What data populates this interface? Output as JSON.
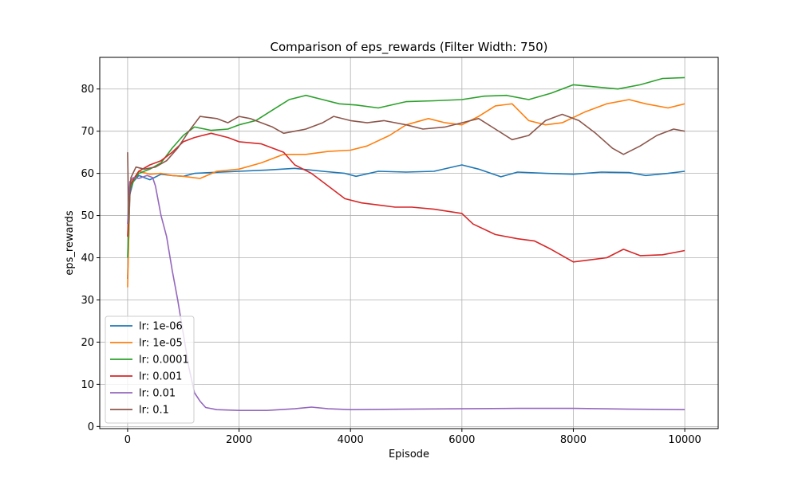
{
  "chart_data": {
    "type": "line",
    "title": "Comparison of eps_rewards (Filter Width: 750)",
    "xlabel": "Episode",
    "ylabel": "eps_rewards",
    "xlim": [
      -500,
      10600
    ],
    "ylim": [
      -0.5,
      87.5
    ],
    "xticks": [
      0,
      2000,
      4000,
      6000,
      8000,
      10000
    ],
    "yticks": [
      0,
      10,
      20,
      30,
      40,
      50,
      60,
      70,
      80
    ],
    "grid": true,
    "legend_position": "lower-left",
    "series": [
      {
        "name": "lr: 1e-06",
        "color": "#1f77b4",
        "points": [
          [
            0,
            35
          ],
          [
            40,
            55
          ],
          [
            100,
            58
          ],
          [
            200,
            59.5
          ],
          [
            400,
            58.5
          ],
          [
            600,
            59.8
          ],
          [
            800,
            59.5
          ],
          [
            1000,
            59.3
          ],
          [
            1200,
            60
          ],
          [
            1500,
            60.2
          ],
          [
            2000,
            60.5
          ],
          [
            2500,
            60.8
          ],
          [
            3000,
            61.2
          ],
          [
            3500,
            60.5
          ],
          [
            3900,
            60
          ],
          [
            4100,
            59.3
          ],
          [
            4500,
            60.5
          ],
          [
            5000,
            60.3
          ],
          [
            5500,
            60.5
          ],
          [
            6000,
            62
          ],
          [
            6300,
            61
          ],
          [
            6700,
            59.2
          ],
          [
            7000,
            60.3
          ],
          [
            7500,
            60
          ],
          [
            8000,
            59.8
          ],
          [
            8500,
            60.3
          ],
          [
            9000,
            60.2
          ],
          [
            9300,
            59.5
          ],
          [
            9700,
            60
          ],
          [
            10000,
            60.5
          ]
        ]
      },
      {
        "name": "lr: 1e-05",
        "color": "#ff7f0e",
        "points": [
          [
            0,
            33
          ],
          [
            40,
            56
          ],
          [
            100,
            58.5
          ],
          [
            200,
            60.5
          ],
          [
            400,
            59.8
          ],
          [
            600,
            60
          ],
          [
            800,
            59.5
          ],
          [
            1000,
            59.3
          ],
          [
            1300,
            58.8
          ],
          [
            1600,
            60.5
          ],
          [
            2000,
            61
          ],
          [
            2400,
            62.5
          ],
          [
            2800,
            64.5
          ],
          [
            3200,
            64.5
          ],
          [
            3600,
            65.2
          ],
          [
            4000,
            65.5
          ],
          [
            4300,
            66.5
          ],
          [
            4700,
            69
          ],
          [
            5000,
            71.5
          ],
          [
            5400,
            73
          ],
          [
            5700,
            72
          ],
          [
            6000,
            71.5
          ],
          [
            6300,
            73.5
          ],
          [
            6600,
            76
          ],
          [
            6900,
            76.5
          ],
          [
            7200,
            72.5
          ],
          [
            7500,
            71.5
          ],
          [
            7800,
            72
          ],
          [
            8200,
            74.5
          ],
          [
            8600,
            76.5
          ],
          [
            9000,
            77.5
          ],
          [
            9300,
            76.5
          ],
          [
            9700,
            75.5
          ],
          [
            10000,
            76.5
          ]
        ]
      },
      {
        "name": "lr: 0.0001",
        "color": "#2ca02c",
        "points": [
          [
            0,
            40
          ],
          [
            40,
            56
          ],
          [
            100,
            58
          ],
          [
            200,
            60
          ],
          [
            400,
            61
          ],
          [
            600,
            62.5
          ],
          [
            800,
            66
          ],
          [
            1000,
            69
          ],
          [
            1200,
            71
          ],
          [
            1500,
            70.2
          ],
          [
            1800,
            70.5
          ],
          [
            2000,
            71.5
          ],
          [
            2300,
            72.5
          ],
          [
            2600,
            75
          ],
          [
            2900,
            77.5
          ],
          [
            3200,
            78.5
          ],
          [
            3500,
            77.5
          ],
          [
            3800,
            76.5
          ],
          [
            4100,
            76.2
          ],
          [
            4500,
            75.5
          ],
          [
            5000,
            77
          ],
          [
            5500,
            77.2
          ],
          [
            6000,
            77.5
          ],
          [
            6400,
            78.3
          ],
          [
            6800,
            78.5
          ],
          [
            7200,
            77.5
          ],
          [
            7600,
            79
          ],
          [
            8000,
            81
          ],
          [
            8400,
            80.5
          ],
          [
            8800,
            80
          ],
          [
            9200,
            81
          ],
          [
            9600,
            82.5
          ],
          [
            10000,
            82.7
          ]
        ]
      },
      {
        "name": "lr: 0.001",
        "color": "#d62728",
        "points": [
          [
            0,
            45
          ],
          [
            40,
            57
          ],
          [
            100,
            58.5
          ],
          [
            200,
            60.5
          ],
          [
            400,
            62
          ],
          [
            600,
            63
          ],
          [
            800,
            65
          ],
          [
            1000,
            67.5
          ],
          [
            1200,
            68.5
          ],
          [
            1500,
            69.5
          ],
          [
            1800,
            68.5
          ],
          [
            2000,
            67.5
          ],
          [
            2400,
            67
          ],
          [
            2800,
            65
          ],
          [
            3000,
            62
          ],
          [
            3300,
            60
          ],
          [
            3600,
            57
          ],
          [
            3900,
            54
          ],
          [
            4200,
            53
          ],
          [
            4500,
            52.5
          ],
          [
            4800,
            52
          ],
          [
            5100,
            52
          ],
          [
            5500,
            51.5
          ],
          [
            6000,
            50.5
          ],
          [
            6200,
            48
          ],
          [
            6600,
            45.5
          ],
          [
            7000,
            44.5
          ],
          [
            7300,
            44
          ],
          [
            7600,
            42
          ],
          [
            8000,
            39
          ],
          [
            8300,
            39.5
          ],
          [
            8600,
            40
          ],
          [
            8900,
            42
          ],
          [
            9200,
            40.5
          ],
          [
            9600,
            40.7
          ],
          [
            10000,
            41.7
          ]
        ]
      },
      {
        "name": "lr: 0.01",
        "color": "#9467bd",
        "points": [
          [
            0,
            48
          ],
          [
            40,
            58
          ],
          [
            100,
            59
          ],
          [
            200,
            58.8
          ],
          [
            350,
            59.5
          ],
          [
            450,
            59
          ],
          [
            500,
            57
          ],
          [
            600,
            50
          ],
          [
            700,
            45
          ],
          [
            800,
            37
          ],
          [
            900,
            30
          ],
          [
            1000,
            22
          ],
          [
            1100,
            14
          ],
          [
            1200,
            8
          ],
          [
            1300,
            6
          ],
          [
            1400,
            4.5
          ],
          [
            1600,
            4
          ],
          [
            2000,
            3.8
          ],
          [
            2500,
            3.8
          ],
          [
            3000,
            4.2
          ],
          [
            3300,
            4.6
          ],
          [
            3600,
            4.2
          ],
          [
            4000,
            4
          ],
          [
            5000,
            4.1
          ],
          [
            6000,
            4.2
          ],
          [
            7000,
            4.3
          ],
          [
            8000,
            4.3
          ],
          [
            9000,
            4.1
          ],
          [
            10000,
            4
          ]
        ]
      },
      {
        "name": "lr: 0.1",
        "color": "#8c564b",
        "points": [
          [
            0,
            65
          ],
          [
            20,
            50
          ],
          [
            60,
            59
          ],
          [
            150,
            61.5
          ],
          [
            300,
            61
          ],
          [
            500,
            61.5
          ],
          [
            700,
            63
          ],
          [
            900,
            66
          ],
          [
            1100,
            70
          ],
          [
            1300,
            73.5
          ],
          [
            1600,
            73
          ],
          [
            1800,
            72
          ],
          [
            2000,
            73.5
          ],
          [
            2200,
            73
          ],
          [
            2400,
            72
          ],
          [
            2600,
            71
          ],
          [
            2800,
            69.5
          ],
          [
            3000,
            70
          ],
          [
            3200,
            70.5
          ],
          [
            3500,
            72
          ],
          [
            3700,
            73.5
          ],
          [
            4000,
            72.5
          ],
          [
            4300,
            72
          ],
          [
            4600,
            72.5
          ],
          [
            5000,
            71.5
          ],
          [
            5300,
            70.5
          ],
          [
            5700,
            71
          ],
          [
            6000,
            72
          ],
          [
            6300,
            73
          ],
          [
            6600,
            70.5
          ],
          [
            6900,
            68
          ],
          [
            7200,
            69
          ],
          [
            7500,
            72.5
          ],
          [
            7800,
            74
          ],
          [
            8100,
            72.5
          ],
          [
            8400,
            69.5
          ],
          [
            8700,
            66
          ],
          [
            8900,
            64.5
          ],
          [
            9200,
            66.5
          ],
          [
            9500,
            69
          ],
          [
            9800,
            70.5
          ],
          [
            10000,
            70
          ]
        ]
      }
    ]
  }
}
